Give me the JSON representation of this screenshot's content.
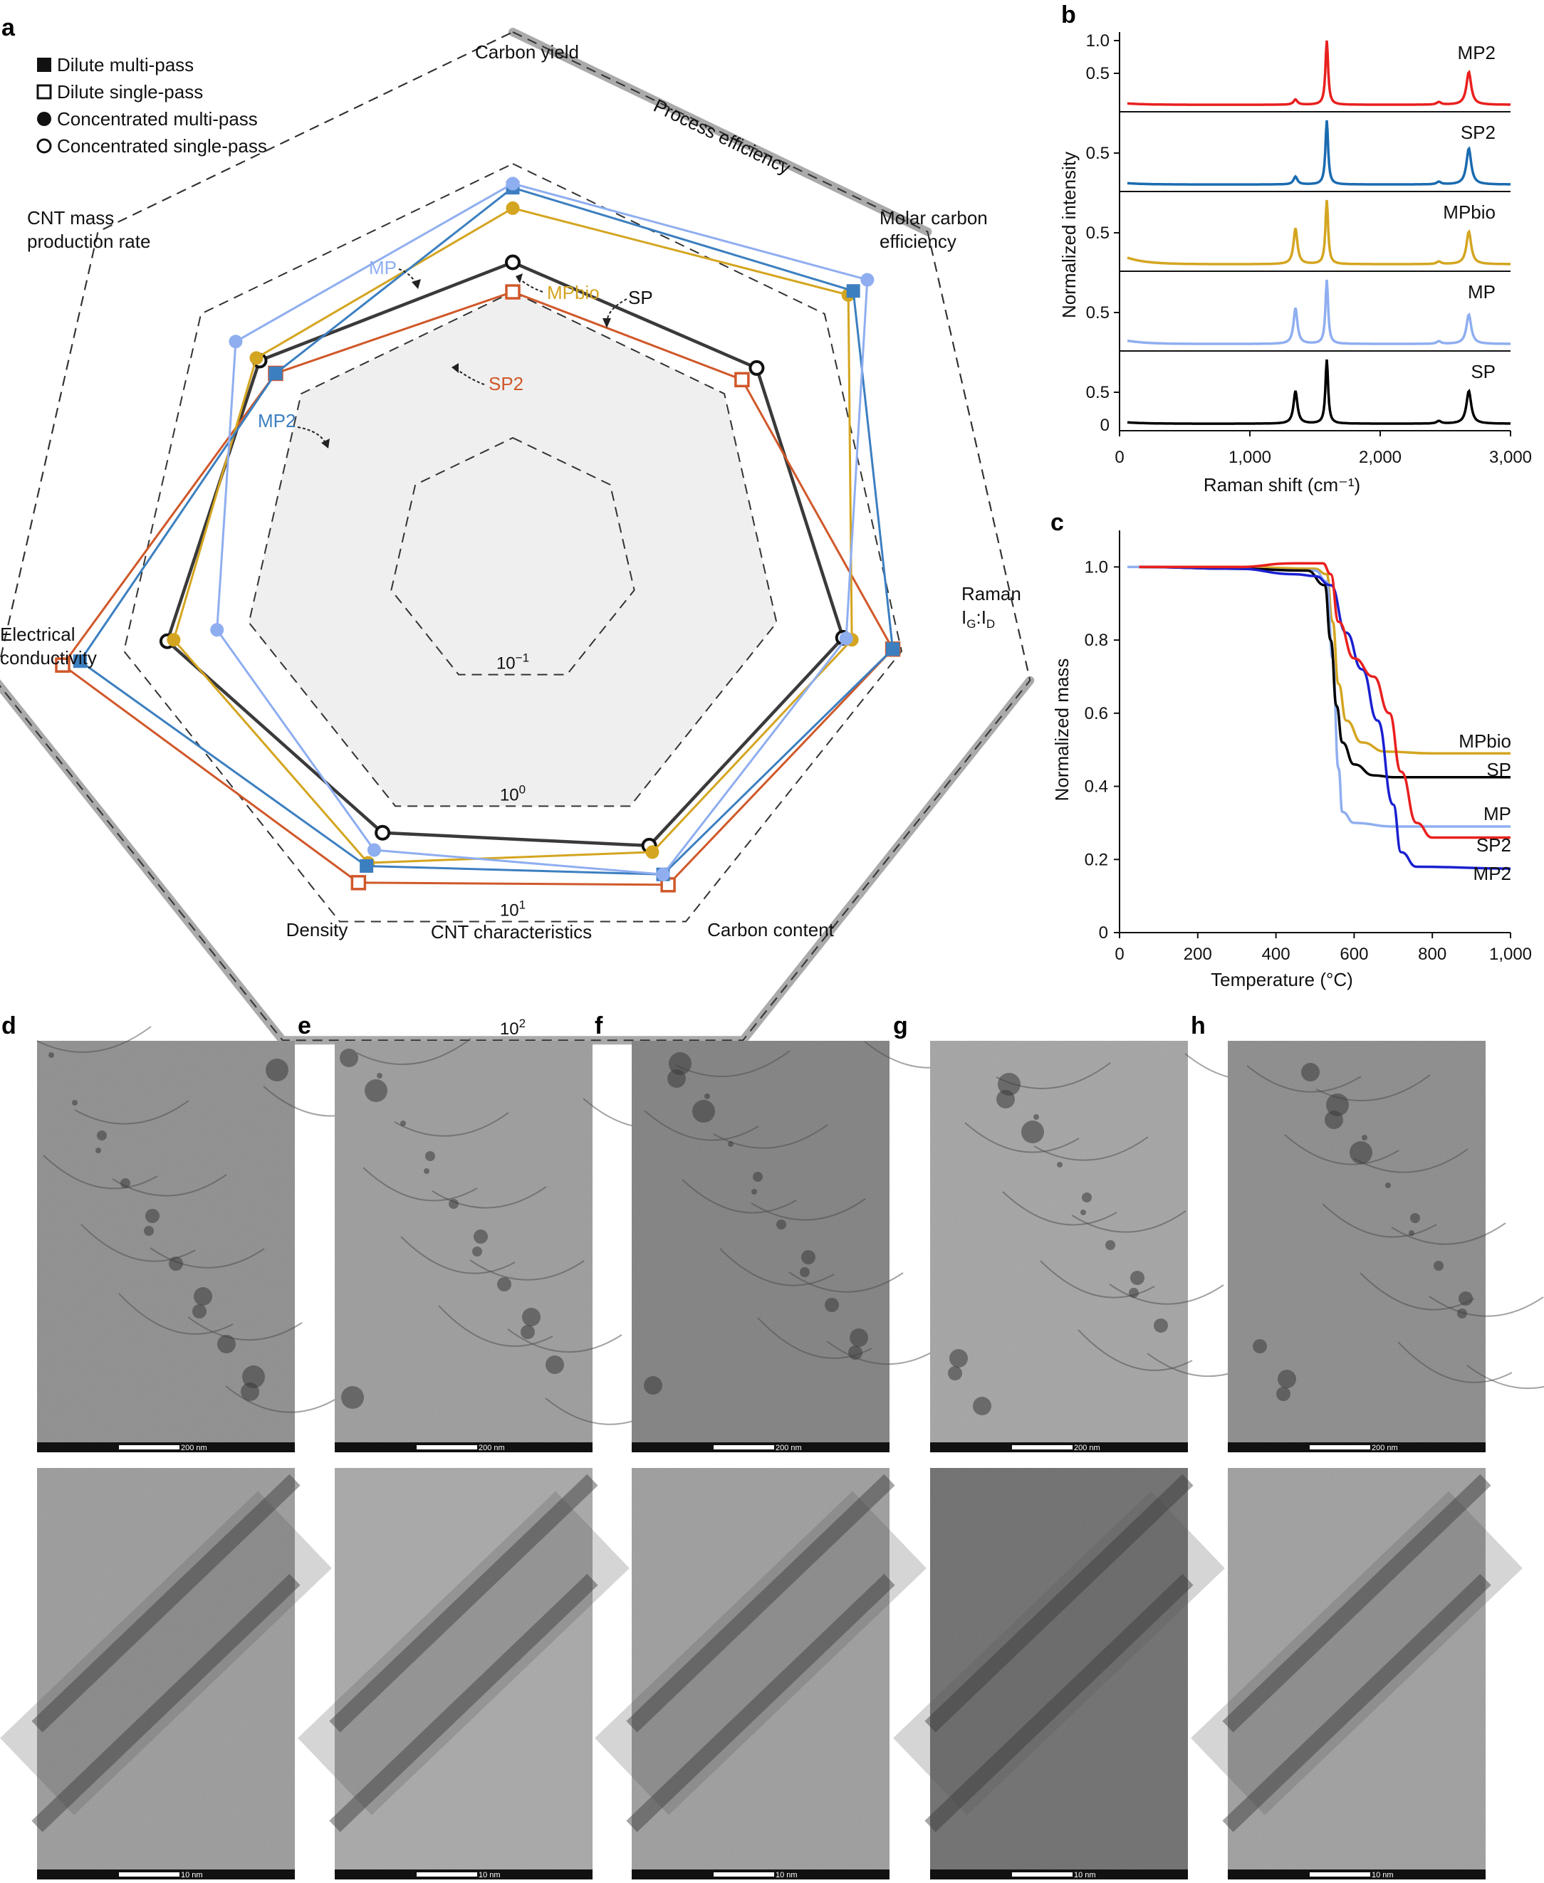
{
  "panels": {
    "a": "a",
    "b": "b",
    "c": "c",
    "d": "d",
    "e": "e",
    "f": "f",
    "g": "g",
    "h": "h"
  },
  "legend_items": [
    {
      "label": "Dilute multi-pass",
      "marker": "filled-square"
    },
    {
      "label": "Dilute single-pass",
      "marker": "open-square"
    },
    {
      "label": "Concentrated multi-pass",
      "marker": "filled-circle"
    },
    {
      "label": "Concentrated single-pass",
      "marker": "open-circle"
    }
  ],
  "colors": {
    "MP": "#8faef0",
    "MP2": "#3c7fc0",
    "MPbio": "#d4a520",
    "SP": "#3a3a3a",
    "SP2": "#d0582a",
    "b_MP2": "#e8201e",
    "b_SP2": "#1a6bb0",
    "b_MPbio": "#d4a520",
    "b_MP": "#8faef0",
    "b_SP": "#000000",
    "c_MPbio": "#d4a520",
    "c_SP": "#000000",
    "c_MP": "#8faef0",
    "c_SP2": "#e8201e",
    "c_MP2": "#1a20d0"
  },
  "chart_data": [
    {
      "type": "radar",
      "axes": [
        "Carbon yield",
        "Molar carbon efficiency",
        "Raman I_G:I_D",
        "Carbon content",
        "Density",
        "Electrical conductivity",
        "CNT mass production rate"
      ],
      "axis_labels": {
        "carbon_yield": "Carbon yield",
        "molar_1": "Molar carbon",
        "molar_2": "efficiency",
        "raman_1": "Raman",
        "raman_2": "I",
        "raman_sub_g": "G",
        "raman_colon": ":I",
        "raman_sub_d": "D",
        "carbon_content": "Carbon content",
        "density": "Density",
        "elec_1": "Electrical",
        "elec_2": "conductivity",
        "cnt_rate_1": "CNT mass",
        "cnt_rate_2": "production rate"
      },
      "group_labels": {
        "process": "Process efficiency",
        "cnt": "CNT characteristics"
      },
      "scale": "log",
      "rings": [
        {
          "base": "10",
          "exp": "−1",
          "value": 0.1
        },
        {
          "base": "10",
          "exp": "0",
          "value": 1
        },
        {
          "base": "10",
          "exp": "1",
          "value": 10
        },
        {
          "base": "10",
          "exp": "2",
          "value": 100
        }
      ],
      "series": [
        {
          "name": "SP",
          "marker": "open-circle",
          "values": [
            1.7,
            2.1,
            3.4,
            2.2,
            1.7,
            4.5,
            2.6
          ]
        },
        {
          "name": "SP2",
          "marker": "open-square",
          "values": [
            1.0,
            1.5,
            8.5,
            4.8,
            4.6,
            30,
            1.8
          ]
        },
        {
          "name": "MP",
          "marker": "filled-circle",
          "values": [
            7,
            26,
            3.6,
            3.9,
            2.4,
            1.8,
            4.5
          ]
        },
        {
          "name": "MP2",
          "marker": "filled-square",
          "values": [
            6.5,
            19,
            8.5,
            3.9,
            3.3,
            22,
            1.8
          ]
        },
        {
          "name": "MPbio",
          "marker": "filled-circle",
          "values": [
            4.5,
            17,
            4.0,
            2.5,
            3.1,
            4.0,
            2.8
          ]
        }
      ],
      "annotations": [
        "SP",
        "SP2",
        "MP",
        "MP2",
        "MPbio"
      ]
    },
    {
      "type": "line",
      "title": "",
      "xlabel": "Raman shift (cm⁻¹)",
      "ylabel": "Normalized intensity",
      "xlim": [
        0,
        3000
      ],
      "x_ticks": [
        "0",
        "1,000",
        "2,000",
        "3,000"
      ],
      "y_ticks": [
        "0",
        "0.5",
        "1.0"
      ],
      "stack_order": [
        "MP2",
        "SP2",
        "MPbio",
        "MP",
        "SP"
      ],
      "series": [
        {
          "name": "MP2",
          "peaks": {
            "D": 0.08,
            "G": 1.0,
            "2D": 0.5
          },
          "baseline": 0.02
        },
        {
          "name": "SP2",
          "peaks": {
            "D": 0.12,
            "G": 1.0,
            "2D": 0.55
          },
          "baseline": 0.02
        },
        {
          "name": "MPbio",
          "peaks": {
            "D": 0.55,
            "G": 1.0,
            "2D": 0.5
          },
          "baseline": 0.1
        },
        {
          "name": "MP",
          "peaks": {
            "D": 0.55,
            "G": 1.0,
            "2D": 0.45
          },
          "baseline": 0.05
        },
        {
          "name": "SP",
          "peaks": {
            "D": 0.5,
            "G": 1.0,
            "2D": 0.5
          },
          "baseline": 0.02
        }
      ],
      "peak_positions": {
        "D": 1350,
        "G": 1590,
        "2D": 2680
      }
    },
    {
      "type": "line",
      "title": "",
      "xlabel": "Temperature (°C)",
      "ylabel": "Normalized mass",
      "xlim": [
        0,
        1000
      ],
      "ylim": [
        0,
        1.1
      ],
      "x_ticks": [
        "0",
        "200",
        "400",
        "600",
        "800",
        "1,000"
      ],
      "y_ticks": [
        "0",
        "0.2",
        "0.4",
        "0.6",
        "0.8",
        "1.0"
      ],
      "series": [
        {
          "name": "MPbio",
          "x": [
            50,
            300,
            500,
            530,
            545,
            560,
            580,
            620,
            680,
            800,
            1000
          ],
          "y": [
            1.0,
            1.0,
            0.995,
            0.98,
            0.85,
            0.68,
            0.58,
            0.52,
            0.495,
            0.49,
            0.49
          ]
        },
        {
          "name": "SP",
          "x": [
            50,
            300,
            480,
            525,
            540,
            555,
            570,
            600,
            650,
            700,
            1000
          ],
          "y": [
            1.0,
            0.995,
            0.99,
            0.95,
            0.8,
            0.62,
            0.52,
            0.46,
            0.43,
            0.425,
            0.425
          ]
        },
        {
          "name": "MP",
          "x": [
            20,
            50,
            300,
            500,
            530,
            545,
            560,
            570,
            600,
            700,
            1000
          ],
          "y": [
            1.0,
            1.0,
            0.995,
            0.99,
            0.96,
            0.75,
            0.45,
            0.33,
            0.3,
            0.29,
            0.29
          ]
        },
        {
          "name": "SP2",
          "x": [
            50,
            300,
            450,
            520,
            540,
            560,
            600,
            650,
            690,
            720,
            760,
            800,
            1000
          ],
          "y": [
            1.0,
            1.0,
            1.01,
            1.01,
            0.98,
            0.85,
            0.75,
            0.7,
            0.6,
            0.44,
            0.3,
            0.26,
            0.26
          ]
        },
        {
          "name": "MP2",
          "x": [
            50,
            300,
            450,
            500,
            540,
            580,
            620,
            660,
            700,
            720,
            760,
            1000
          ],
          "y": [
            1.0,
            0.995,
            0.98,
            0.975,
            0.95,
            0.82,
            0.72,
            0.58,
            0.35,
            0.22,
            0.18,
            0.175
          ]
        }
      ]
    }
  ],
  "tem": {
    "scale_top": "200 nm",
    "scale_bottom": "10 nm",
    "columns": [
      "d",
      "e",
      "f",
      "g",
      "h"
    ]
  }
}
